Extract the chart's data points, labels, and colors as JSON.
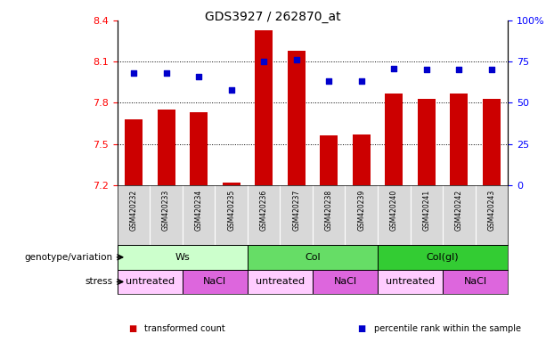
{
  "title": "GDS3927 / 262870_at",
  "samples": [
    "GSM420232",
    "GSM420233",
    "GSM420234",
    "GSM420235",
    "GSM420236",
    "GSM420237",
    "GSM420238",
    "GSM420239",
    "GSM420240",
    "GSM420241",
    "GSM420242",
    "GSM420243"
  ],
  "bar_values": [
    7.68,
    7.75,
    7.73,
    7.22,
    8.33,
    8.18,
    7.56,
    7.57,
    7.87,
    7.83,
    7.87,
    7.83
  ],
  "bar_bottom": 7.2,
  "percentile_values": [
    68,
    68,
    66,
    58,
    75,
    76,
    63,
    63,
    71,
    70,
    70,
    70
  ],
  "left_ylim": [
    7.2,
    8.4
  ],
  "right_ylim": [
    0,
    100
  ],
  "left_yticks": [
    7.2,
    7.5,
    7.8,
    8.1,
    8.4
  ],
  "right_yticks": [
    0,
    25,
    50,
    75,
    100
  ],
  "right_yticklabels": [
    "0",
    "25",
    "50",
    "75",
    "100%"
  ],
  "bar_color": "#cc0000",
  "dot_color": "#0000cc",
  "groups": [
    {
      "label": "Ws",
      "start": 0,
      "end": 4,
      "color": "#ccffcc"
    },
    {
      "label": "Col",
      "start": 4,
      "end": 8,
      "color": "#66dd66"
    },
    {
      "label": "Col(gl)",
      "start": 8,
      "end": 12,
      "color": "#33cc33"
    }
  ],
  "stress": [
    {
      "label": "untreated",
      "start": 0,
      "end": 2,
      "color": "#ffccff"
    },
    {
      "label": "NaCl",
      "start": 2,
      "end": 4,
      "color": "#dd66dd"
    },
    {
      "label": "untreated",
      "start": 4,
      "end": 6,
      "color": "#ffccff"
    },
    {
      "label": "NaCl",
      "start": 6,
      "end": 8,
      "color": "#dd66dd"
    },
    {
      "label": "untreated",
      "start": 8,
      "end": 10,
      "color": "#ffccff"
    },
    {
      "label": "NaCl",
      "start": 10,
      "end": 12,
      "color": "#dd66dd"
    }
  ],
  "legend_items": [
    {
      "label": "transformed count",
      "color": "#cc0000"
    },
    {
      "label": "percentile rank within the sample",
      "color": "#0000cc"
    }
  ],
  "genotype_label": "genotype/variation",
  "stress_label": "stress",
  "tick_color": "#cccccc",
  "grid_yticks": [
    7.5,
    7.8,
    8.1
  ]
}
